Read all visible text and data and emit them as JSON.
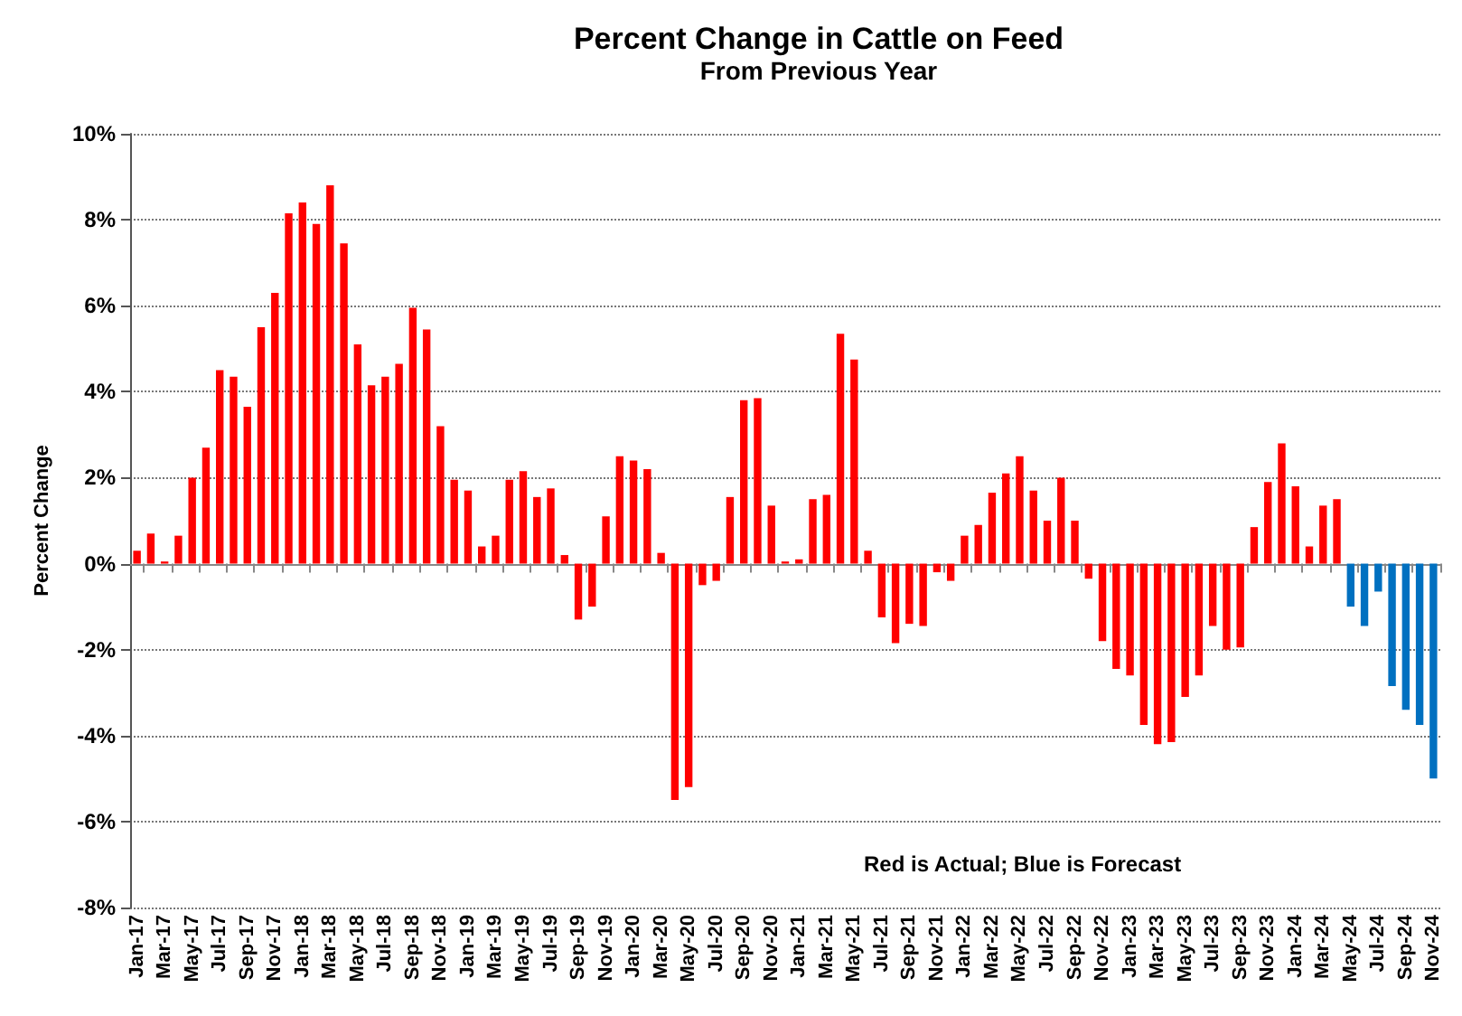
{
  "chart_data": {
    "type": "bar",
    "title": "Percent Change in Cattle on Feed",
    "subtitle": "From Previous Year",
    "ylabel": "Percent Change",
    "categories": [
      "Jan-17",
      null,
      "Mar-17",
      null,
      "May-17",
      null,
      "Jul-17",
      null,
      "Sep-17",
      null,
      "Nov-17",
      null,
      "Jan-18",
      null,
      "Mar-18",
      null,
      "May-18",
      null,
      "Jul-18",
      null,
      "Sep-18",
      null,
      "Nov-18",
      null,
      "Jan-19",
      null,
      "Mar-19",
      null,
      "May-19",
      null,
      "Jul-19",
      null,
      "Sep-19",
      null,
      "Nov-19",
      null,
      "Jan-20",
      null,
      "Mar-20",
      null,
      "May-20",
      null,
      "Jul-20",
      null,
      "Sep-20",
      null,
      "Nov-20",
      null,
      "Jan-21",
      null,
      "Mar-21",
      null,
      "May-21",
      null,
      "Jul-21",
      null,
      "Sep-21",
      null,
      "Nov-21",
      null,
      "Jan-22",
      null,
      "Mar-22",
      null,
      "May-22",
      null,
      "Jul-22",
      null,
      "Sep-22",
      null,
      "Nov-22",
      null,
      "Jan-23",
      null,
      "Mar-23",
      null,
      "May-23",
      null,
      "Jul-23",
      null,
      "Sep-23",
      null,
      "Nov-23",
      null,
      "Jan-24",
      null,
      "Mar-24",
      null,
      "May-24",
      null,
      "Jul-24",
      null,
      "Sep-24",
      null,
      "Nov-24"
    ],
    "values": [
      0.3,
      0.7,
      0.05,
      0.65,
      2.0,
      2.7,
      4.5,
      4.35,
      3.65,
      5.5,
      6.3,
      8.15,
      8.4,
      7.9,
      8.8,
      7.45,
      5.1,
      4.15,
      4.35,
      4.65,
      5.95,
      5.45,
      3.2,
      1.95,
      1.7,
      0.4,
      0.65,
      1.95,
      2.15,
      1.55,
      1.75,
      0.2,
      -1.3,
      -1.0,
      1.1,
      2.5,
      2.4,
      2.2,
      0.25,
      -5.5,
      -5.2,
      -0.5,
      -0.4,
      1.55,
      3.8,
      3.85,
      1.35,
      0.05,
      0.1,
      1.5,
      1.6,
      5.35,
      4.75,
      0.3,
      -1.25,
      -1.85,
      -1.4,
      -1.45,
      -0.2,
      -0.4,
      0.65,
      0.9,
      1.65,
      2.1,
      2.5,
      1.7,
      1.0,
      2.0,
      1.0,
      -0.35,
      -1.8,
      -2.45,
      -2.6,
      -3.75,
      -4.2,
      -4.15,
      -3.1,
      -2.6,
      -1.45,
      -2.0,
      -1.95,
      0.85,
      1.9,
      2.8,
      1.8,
      0.4,
      1.35,
      1.5,
      -1.0,
      -1.45,
      -0.65,
      -2.85,
      -3.4,
      -3.75,
      -5.0
    ],
    "colors": [
      "#ff0000",
      "#ff0000",
      "#ff0000",
      "#ff0000",
      "#ff0000",
      "#ff0000",
      "#ff0000",
      "#ff0000",
      "#ff0000",
      "#ff0000",
      "#ff0000",
      "#ff0000",
      "#ff0000",
      "#ff0000",
      "#ff0000",
      "#ff0000",
      "#ff0000",
      "#ff0000",
      "#ff0000",
      "#ff0000",
      "#ff0000",
      "#ff0000",
      "#ff0000",
      "#ff0000",
      "#ff0000",
      "#ff0000",
      "#ff0000",
      "#ff0000",
      "#ff0000",
      "#ff0000",
      "#ff0000",
      "#ff0000",
      "#ff0000",
      "#ff0000",
      "#ff0000",
      "#ff0000",
      "#ff0000",
      "#ff0000",
      "#ff0000",
      "#ff0000",
      "#ff0000",
      "#ff0000",
      "#ff0000",
      "#ff0000",
      "#ff0000",
      "#ff0000",
      "#ff0000",
      "#ff0000",
      "#ff0000",
      "#ff0000",
      "#ff0000",
      "#ff0000",
      "#ff0000",
      "#ff0000",
      "#ff0000",
      "#ff0000",
      "#ff0000",
      "#ff0000",
      "#ff0000",
      "#ff0000",
      "#ff0000",
      "#ff0000",
      "#ff0000",
      "#ff0000",
      "#ff0000",
      "#ff0000",
      "#ff0000",
      "#ff0000",
      "#ff0000",
      "#ff0000",
      "#ff0000",
      "#ff0000",
      "#ff0000",
      "#ff0000",
      "#ff0000",
      "#ff0000",
      "#ff0000",
      "#ff0000",
      "#ff0000",
      "#ff0000",
      "#ff0000",
      "#ff0000",
      "#ff0000",
      "#ff0000",
      "#ff0000",
      "#ff0000",
      "#ff0000",
      "#ff0000",
      "#0070c0",
      "#0070c0",
      "#0070c0",
      "#0070c0",
      "#0070c0",
      "#0070c0",
      "#0070c0"
    ],
    "ylim": [
      -8,
      10
    ],
    "yticks": [
      {
        "value": -8,
        "label": "-8%"
      },
      {
        "value": -6,
        "label": "-6%"
      },
      {
        "value": -4,
        "label": "-4%"
      },
      {
        "value": -2,
        "label": "-2%"
      },
      {
        "value": 0,
        "label": "0%"
      },
      {
        "value": 2,
        "label": "2%"
      },
      {
        "value": 4,
        "label": "4%"
      },
      {
        "value": 6,
        "label": "6%"
      },
      {
        "value": 8,
        "label": "8%"
      },
      {
        "value": 10,
        "label": "10%"
      }
    ],
    "grid": "y",
    "annotations": [
      "Red is Actual; Blue is Forecast"
    ]
  }
}
